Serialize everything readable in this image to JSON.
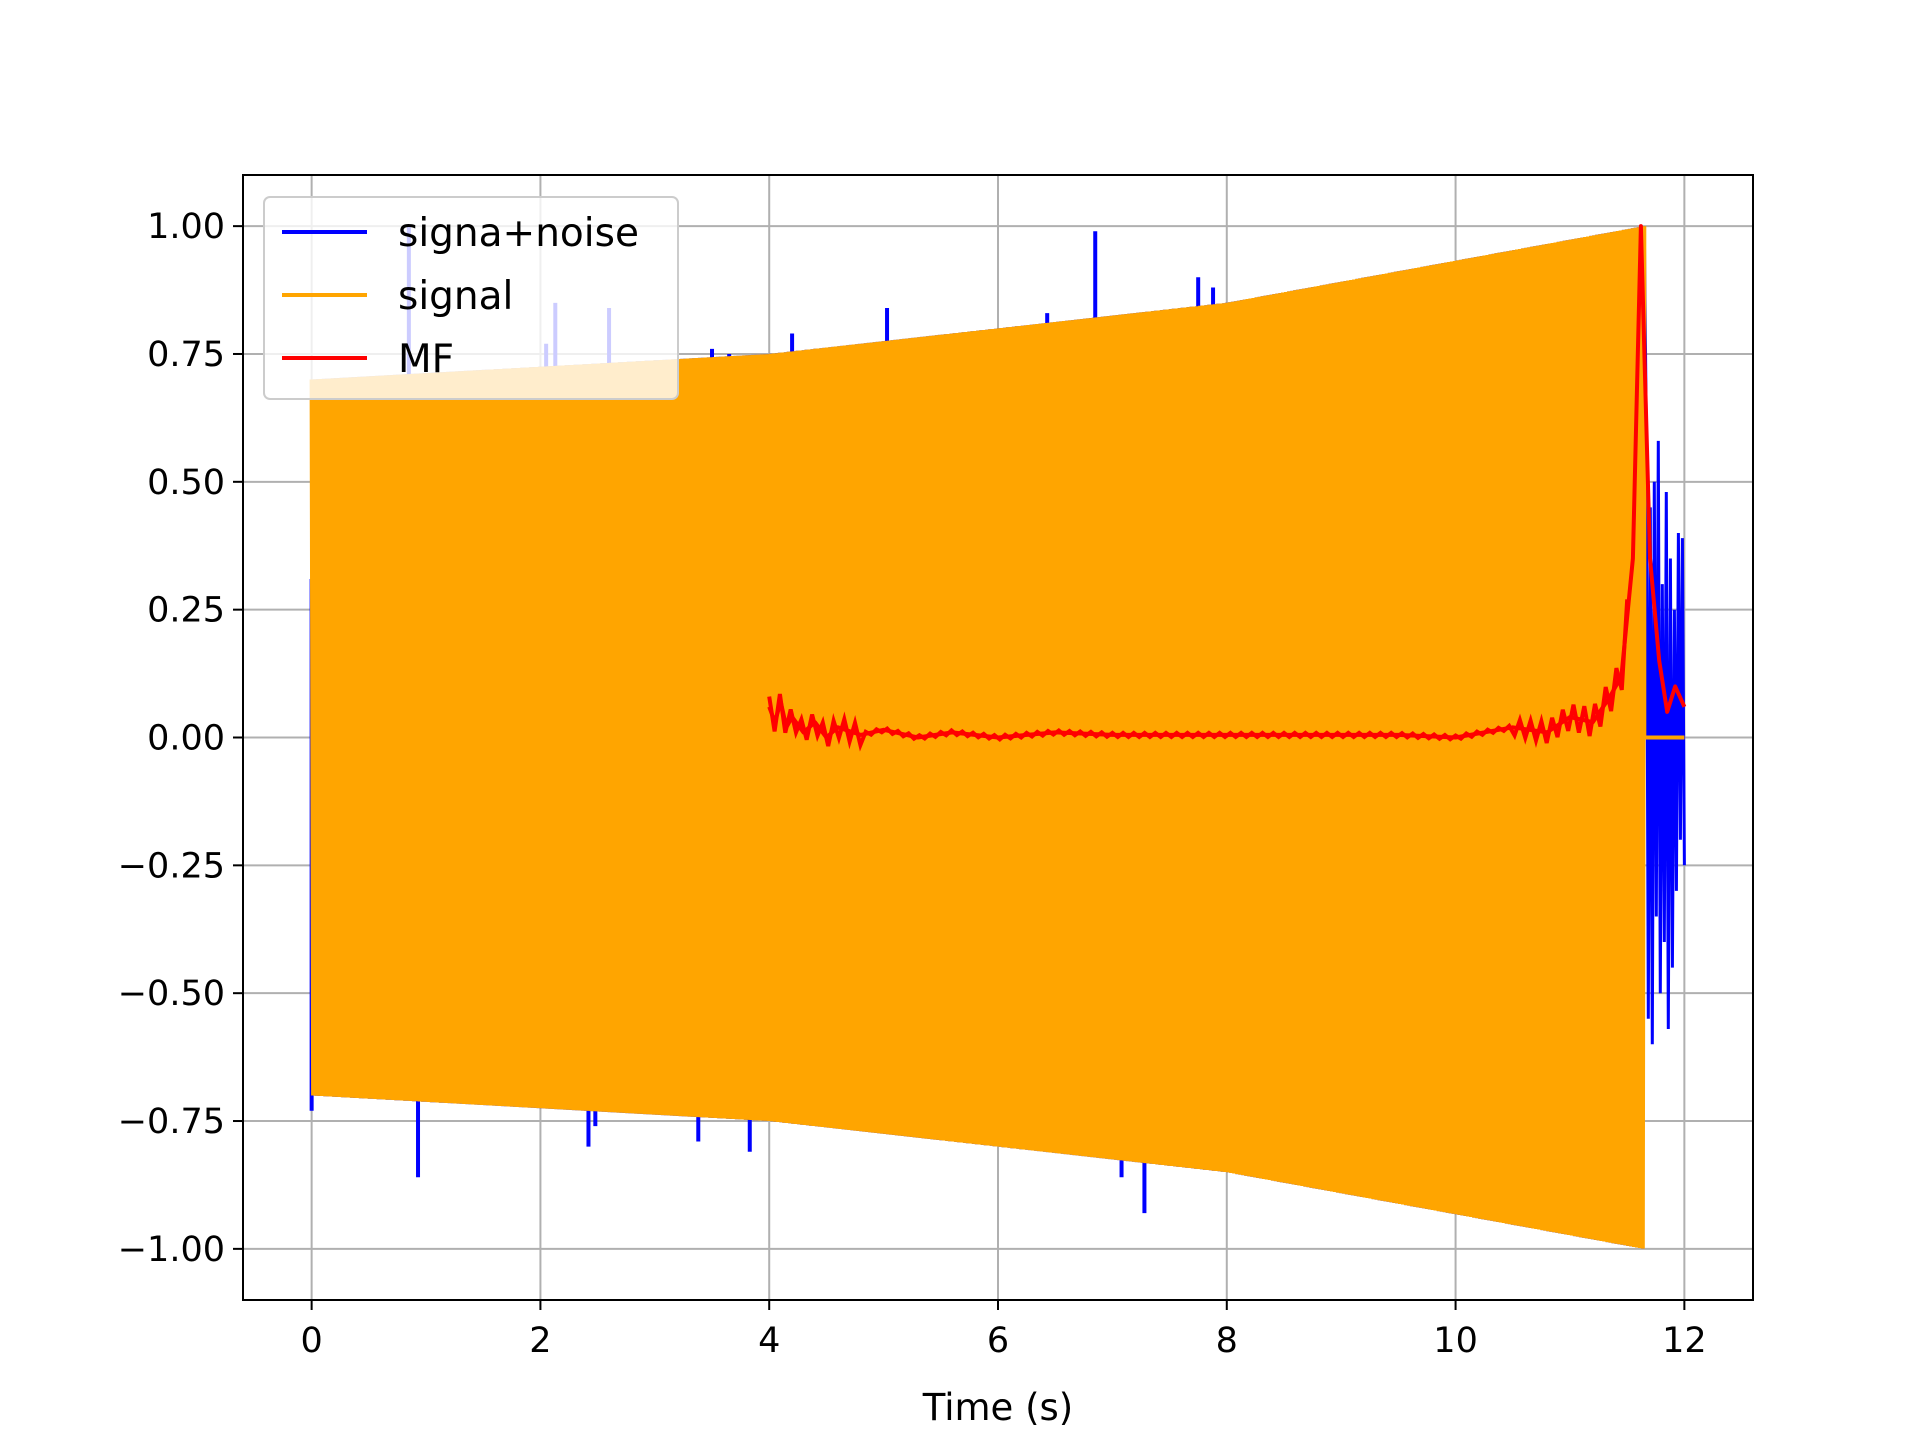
{
  "chart_data": {
    "type": "line",
    "title": "",
    "xlabel": "Time (s)",
    "ylabel": "",
    "xlim": [
      -0.6,
      12.6
    ],
    "ylim": [
      -1.1,
      1.1
    ],
    "xticks": [
      0,
      2,
      4,
      6,
      8,
      10,
      12
    ],
    "xtick_labels": [
      "0",
      "2",
      "4",
      "6",
      "8",
      "10",
      "12"
    ],
    "yticks": [
      1.0,
      0.75,
      0.5,
      0.25,
      0.0,
      -0.25,
      -0.5,
      -0.75,
      -1.0
    ],
    "ytick_labels": [
      "1.00",
      "0.75",
      "0.50",
      "0.25",
      "0.00",
      "−0.25",
      "−0.50",
      "−0.75",
      "−1.00"
    ],
    "grid": true,
    "legend_position": "top-left",
    "series": [
      {
        "name": "signa+noise",
        "color": "#0000ff",
        "style": "dense-oscillation",
        "envelope_x": [
          0.0,
          4.0,
          8.0,
          11.65
        ],
        "envelope_upper": [
          0.7,
          0.75,
          0.85,
          1.0
        ],
        "envelope_lower": [
          -0.7,
          -0.75,
          -0.85,
          -1.0
        ],
        "tail_x": [
          11.65,
          12.0
        ],
        "spikes": [
          {
            "x": 0.0,
            "y": 0.31
          },
          {
            "x": 0.0,
            "y": -0.73
          },
          {
            "x": 0.1,
            "y": 0.7
          },
          {
            "x": 0.93,
            "y": -0.86
          },
          {
            "x": 0.85,
            "y": 1.0
          },
          {
            "x": 2.05,
            "y": 0.77
          },
          {
            "x": 2.13,
            "y": 0.85
          },
          {
            "x": 2.42,
            "y": -0.8
          },
          {
            "x": 2.48,
            "y": -0.76
          },
          {
            "x": 2.6,
            "y": 0.84
          },
          {
            "x": 3.38,
            "y": -0.79
          },
          {
            "x": 3.5,
            "y": 0.76
          },
          {
            "x": 3.65,
            "y": 0.75
          },
          {
            "x": 3.83,
            "y": -0.81
          },
          {
            "x": 4.2,
            "y": 0.79
          },
          {
            "x": 5.03,
            "y": 0.84
          },
          {
            "x": 6.43,
            "y": 0.83
          },
          {
            "x": 6.85,
            "y": 0.99
          },
          {
            "x": 7.08,
            "y": -0.86
          },
          {
            "x": 7.28,
            "y": -0.93
          },
          {
            "x": 7.75,
            "y": 0.9
          },
          {
            "x": 7.88,
            "y": 0.88
          }
        ]
      },
      {
        "name": "signal",
        "color": "#ffa500",
        "style": "dense-oscillation",
        "envelope_x": [
          0.0,
          4.0,
          8.0,
          11.65
        ],
        "envelope_upper": [
          0.7,
          0.75,
          0.85,
          1.0
        ],
        "envelope_lower": [
          -0.7,
          -0.75,
          -0.85,
          -1.0
        ],
        "tail_x": [
          11.65,
          12.0
        ],
        "tail_y": 0.0
      },
      {
        "name": "MF",
        "color": "#ff0000",
        "style": "line",
        "x": [
          4.0,
          4.05,
          4.1,
          4.15,
          4.2,
          4.3,
          4.4,
          4.5,
          4.6,
          4.8,
          5.0,
          5.3,
          5.6,
          6.0,
          6.5,
          7.0,
          7.5,
          8.0,
          8.5,
          9.0,
          9.5,
          10.0,
          10.5,
          10.8,
          11.0,
          11.2,
          11.35,
          11.45,
          11.55,
          11.62,
          11.7,
          11.78,
          11.85,
          11.92,
          12.0
        ],
        "y": [
          0.06,
          0.03,
          0.07,
          0.02,
          0.04,
          0.01,
          0.03,
          0.0,
          0.02,
          0.005,
          0.015,
          0.0,
          0.01,
          0.0,
          0.01,
          0.005,
          0.005,
          0.005,
          0.005,
          0.005,
          0.005,
          0.0,
          0.02,
          0.01,
          0.04,
          0.03,
          0.08,
          0.12,
          0.35,
          1.0,
          0.35,
          0.15,
          0.05,
          0.1,
          0.06
        ]
      }
    ]
  }
}
